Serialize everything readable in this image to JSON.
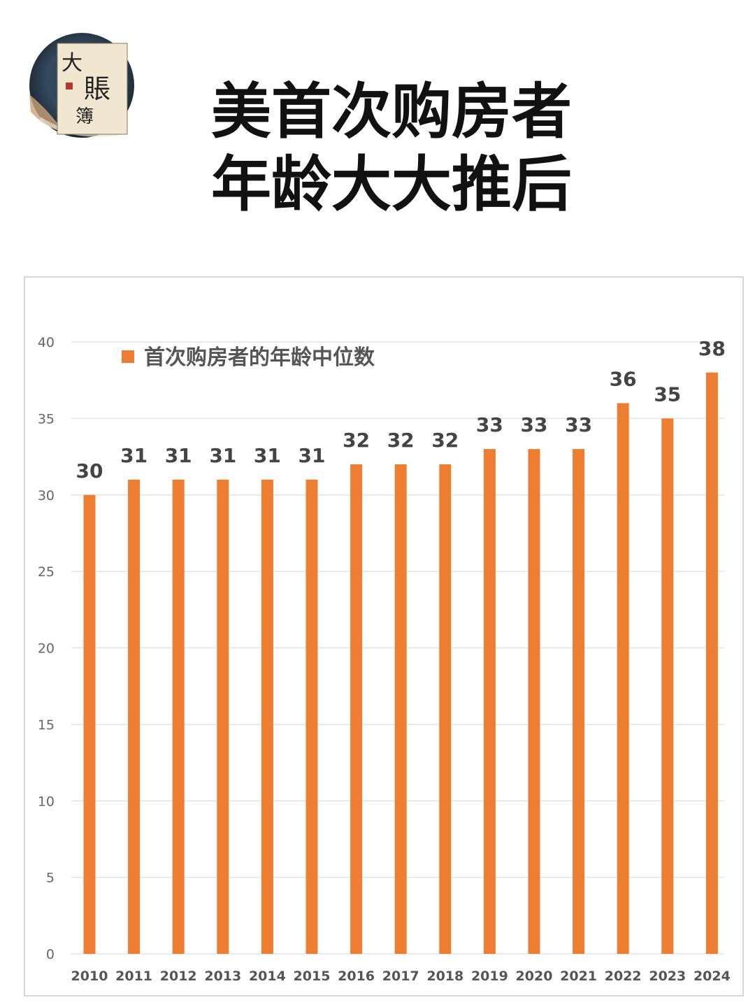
{
  "header": {
    "logo_chars": [
      "大",
      "賬",
      "簿"
    ],
    "title_line1": "美首次购房者",
    "title_line2": "年龄大大推后"
  },
  "colors": {
    "bar": "#ED7D31",
    "grid": "#e3e3e3",
    "title": "#111111"
  },
  "chart_data": {
    "type": "bar",
    "categories": [
      "2010",
      "2011",
      "2012",
      "2013",
      "2014",
      "2015",
      "2016",
      "2017",
      "2018",
      "2019",
      "2020",
      "2021",
      "2022",
      "2023",
      "2024"
    ],
    "series": [
      {
        "name": "首次购房者的年龄中位数",
        "values": [
          30,
          31,
          31,
          31,
          31,
          31,
          32,
          32,
          32,
          33,
          33,
          33,
          36,
          35,
          38
        ]
      }
    ],
    "ylim": [
      0,
      40
    ],
    "yticks": [
      0,
      5,
      10,
      15,
      20,
      25,
      30,
      35,
      40
    ],
    "grid": true,
    "legend_position": "top-left",
    "data_labels": true
  }
}
